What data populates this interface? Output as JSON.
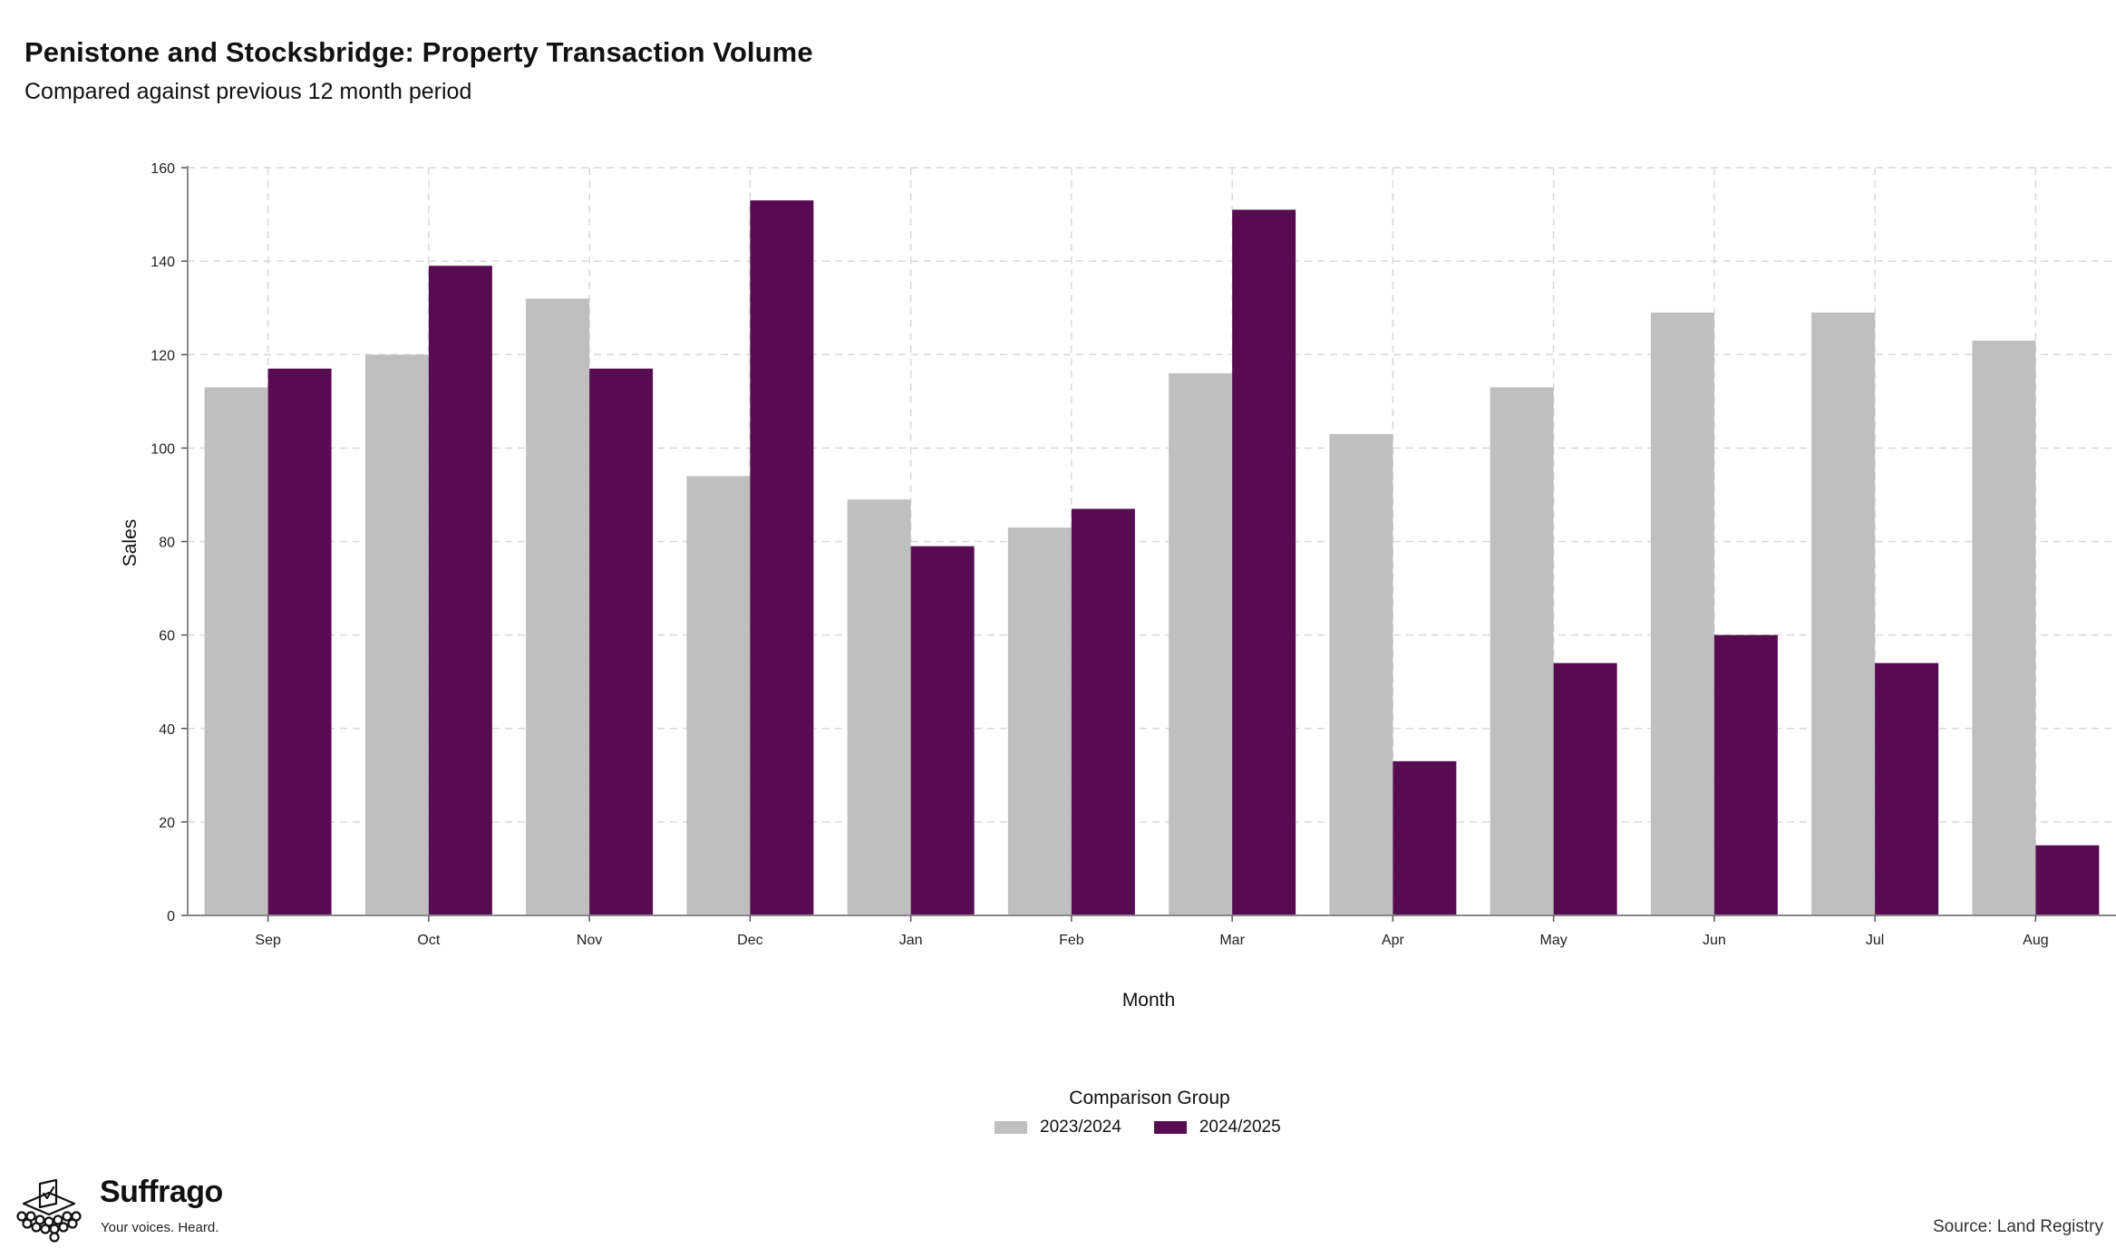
{
  "header": {
    "title": "Penistone and Stocksbridge: Property Transaction Volume",
    "subtitle": "Compared against previous 12 month period"
  },
  "legend": {
    "title": "Comparison Group"
  },
  "footer": {
    "source": "Source: Land Registry",
    "brand_name": "Suffrago",
    "brand_tagline": "Your voices. Heard."
  },
  "chart_data": {
    "type": "bar",
    "title": "Penistone and Stocksbridge: Property Transaction Volume",
    "subtitle": "Compared against previous 12 month period",
    "xlabel": "Month",
    "ylabel": "Sales",
    "categories": [
      "Sep",
      "Oct",
      "Nov",
      "Dec",
      "Jan",
      "Feb",
      "Mar",
      "Apr",
      "May",
      "Jun",
      "Jul",
      "Aug"
    ],
    "series": [
      {
        "name": "2023/2024",
        "color": "#bfbfbf",
        "values": [
          113,
          120,
          132,
          94,
          89,
          83,
          116,
          103,
          113,
          129,
          129,
          123
        ]
      },
      {
        "name": "2024/2025",
        "color": "#570c52",
        "values": [
          117,
          139,
          117,
          153,
          79,
          87,
          151,
          33,
          54,
          60,
          54,
          15
        ]
      }
    ],
    "ylim": [
      0,
      160
    ],
    "yticks": [
      0,
      20,
      40,
      60,
      80,
      100,
      120,
      140,
      160
    ],
    "grid": true,
    "legend_position": "bottom"
  }
}
